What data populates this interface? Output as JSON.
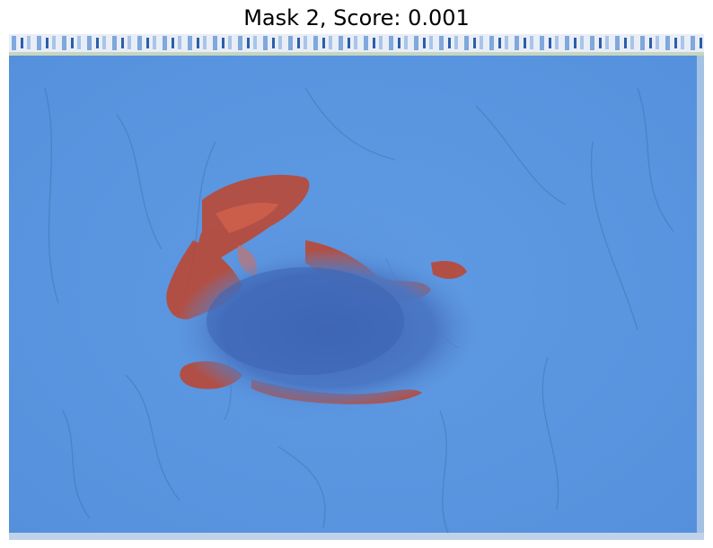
{
  "title": "Mask 2, Score: 0.001",
  "image": {
    "subject": "skin-lesion-with-mask-overlay",
    "colors": {
      "mask_overlay": "#5b9ae6",
      "mask_dark": "#3f6fbf",
      "lesion_red": "#c0432a",
      "lesion_center": "#4e72c2",
      "top_strip_light": "#e8eef7",
      "top_strip_dark": "#1f4f9c"
    }
  }
}
